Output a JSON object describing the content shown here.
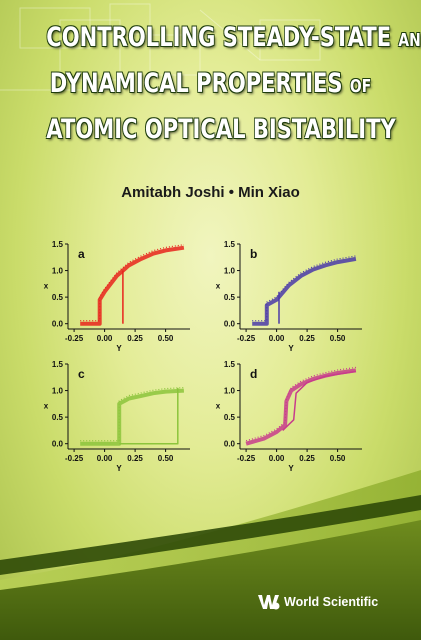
{
  "title": {
    "line1_main": "CONTROLLING STEADY-STATE",
    "line1_small": "AND",
    "line2_main": "DYNAMICAL PROPERTIES",
    "line2_small": "OF",
    "line3_main": "ATOMIC OPTICAL BISTABILITY"
  },
  "authors": "Amitabh Joshi • Min Xiao",
  "publisher": {
    "name": "World Scientific",
    "logo_icon": "world-scientific-logo-icon"
  },
  "colors": {
    "panel_a": "#e8241c",
    "panel_b": "#4a3aa8",
    "panel_c": "#8cc43c",
    "panel_d": "#c83c8c"
  },
  "chart_data": [
    {
      "type": "line",
      "panel": "a",
      "xlabel": "Y",
      "ylabel": "x",
      "xticks": [
        "-0.25",
        "0.00",
        "0.25",
        "0.50"
      ],
      "yticks": [
        "0.0",
        "0.5",
        "1.0",
        "1.5"
      ],
      "xlim": [
        -0.3,
        0.7
      ],
      "ylim": [
        -0.1,
        1.5
      ],
      "series": [
        {
          "values": [
            [
              -0.2,
              0.0
            ],
            [
              -0.04,
              0.0
            ],
            [
              -0.04,
              0.45
            ],
            [
              0.0,
              0.6
            ],
            [
              0.1,
              0.9
            ],
            [
              0.2,
              1.1
            ],
            [
              0.3,
              1.22
            ],
            [
              0.4,
              1.32
            ],
            [
              0.5,
              1.38
            ],
            [
              0.65,
              1.43
            ]
          ]
        },
        {
          "values": [
            [
              0.15,
              0.0
            ],
            [
              0.15,
              1.0
            ]
          ]
        }
      ]
    },
    {
      "type": "line",
      "panel": "b",
      "xlabel": "Y",
      "ylabel": "x",
      "xticks": [
        "-0.25",
        "0.00",
        "0.25",
        "0.50"
      ],
      "yticks": [
        "0.0",
        "0.5",
        "1.0",
        "1.5"
      ],
      "xlim": [
        -0.3,
        0.7
      ],
      "ylim": [
        -0.1,
        1.5
      ],
      "series": [
        {
          "values": [
            [
              -0.2,
              0.0
            ],
            [
              -0.08,
              0.0
            ],
            [
              -0.08,
              0.35
            ],
            [
              0.0,
              0.45
            ],
            [
              0.1,
              0.72
            ],
            [
              0.2,
              0.9
            ],
            [
              0.3,
              1.02
            ],
            [
              0.4,
              1.1
            ],
            [
              0.5,
              1.16
            ],
            [
              0.65,
              1.22
            ]
          ]
        },
        {
          "values": [
            [
              0.02,
              0.0
            ],
            [
              0.02,
              0.6
            ]
          ]
        }
      ]
    },
    {
      "type": "line",
      "panel": "c",
      "xlabel": "Y",
      "ylabel": "x",
      "xticks": [
        "-0.25",
        "0.00",
        "0.25",
        "0.50"
      ],
      "yticks": [
        "0.0",
        "0.5",
        "1.0",
        "1.5"
      ],
      "xlim": [
        -0.3,
        0.7
      ],
      "ylim": [
        -0.1,
        1.5
      ],
      "series": [
        {
          "values": [
            [
              -0.2,
              0.0
            ],
            [
              0.12,
              0.0
            ],
            [
              0.12,
              0.75
            ],
            [
              0.2,
              0.85
            ],
            [
              0.3,
              0.9
            ],
            [
              0.4,
              0.95
            ],
            [
              0.5,
              0.98
            ],
            [
              0.65,
              1.0
            ]
          ]
        },
        {
          "values": [
            [
              0.12,
              0.0
            ],
            [
              0.6,
              0.0
            ],
            [
              0.6,
              1.05
            ]
          ]
        }
      ]
    },
    {
      "type": "line",
      "panel": "d",
      "xlabel": "Y",
      "ylabel": "x",
      "xticks": [
        "-0.25",
        "0.00",
        "0.25",
        "0.50"
      ],
      "yticks": [
        "0.0",
        "0.5",
        "1.0",
        "1.5"
      ],
      "xlim": [
        -0.3,
        0.7
      ],
      "ylim": [
        -0.1,
        1.5
      ],
      "series": [
        {
          "values": [
            [
              -0.25,
              0.0
            ],
            [
              -0.1,
              0.1
            ],
            [
              0.0,
              0.22
            ],
            [
              0.07,
              0.35
            ],
            [
              0.08,
              0.8
            ],
            [
              0.12,
              1.0
            ],
            [
              0.2,
              1.12
            ],
            [
              0.3,
              1.22
            ],
            [
              0.4,
              1.28
            ],
            [
              0.5,
              1.33
            ],
            [
              0.65,
              1.38
            ]
          ]
        },
        {
          "values": [
            [
              0.05,
              0.25
            ],
            [
              0.14,
              0.45
            ],
            [
              0.16,
              0.95
            ],
            [
              0.25,
              1.15
            ],
            [
              0.4,
              1.27
            ],
            [
              0.65,
              1.36
            ]
          ]
        }
      ]
    }
  ]
}
